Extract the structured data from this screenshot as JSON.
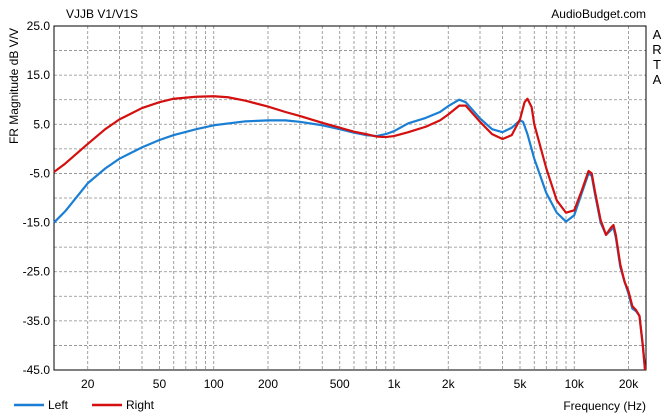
{
  "chart_data": {
    "type": "line",
    "title": "VJJB V1/V1S",
    "source": "AudioBudget.com",
    "side_label": [
      "A",
      "R",
      "T",
      "A"
    ],
    "xlabel": "Frequency (Hz)",
    "ylabel": "FR Magnitude dB V/V",
    "x_scale": "log",
    "xlim": [
      13,
      25000
    ],
    "ylim": [
      -45,
      25
    ],
    "x_ticks": [
      {
        "value": 20,
        "label": "20"
      },
      {
        "value": 50,
        "label": "50"
      },
      {
        "value": 100,
        "label": "100"
      },
      {
        "value": 200,
        "label": "200"
      },
      {
        "value": 500,
        "label": "500"
      },
      {
        "value": 1000,
        "label": "1k"
      },
      {
        "value": 2000,
        "label": "2k"
      },
      {
        "value": 5000,
        "label": "5k"
      },
      {
        "value": 10000,
        "label": "10k"
      },
      {
        "value": 20000,
        "label": "20k"
      }
    ],
    "y_ticks": [
      {
        "value": 25,
        "label": "25.0"
      },
      {
        "value": 15,
        "label": "15.0"
      },
      {
        "value": 5,
        "label": "5.0"
      },
      {
        "value": -5,
        "label": "-5.0"
      },
      {
        "value": -15,
        "label": "-15.0"
      },
      {
        "value": -25,
        "label": "-25.0"
      },
      {
        "value": -35,
        "label": "-35.0"
      },
      {
        "value": -45,
        "label": "-45.0"
      }
    ],
    "grid": true,
    "legend_position": "bottom-left",
    "series": [
      {
        "name": "Left",
        "color": "#1a7fd4",
        "points": [
          [
            13,
            -15.0
          ],
          [
            15,
            -12.7
          ],
          [
            20,
            -7.0
          ],
          [
            25,
            -4.0
          ],
          [
            30,
            -2.0
          ],
          [
            40,
            0.3
          ],
          [
            50,
            1.8
          ],
          [
            60,
            2.8
          ],
          [
            80,
            4.0
          ],
          [
            100,
            4.8
          ],
          [
            150,
            5.6
          ],
          [
            200,
            5.8
          ],
          [
            250,
            5.8
          ],
          [
            300,
            5.5
          ],
          [
            400,
            4.8
          ],
          [
            500,
            4.0
          ],
          [
            600,
            3.3
          ],
          [
            700,
            2.8
          ],
          [
            800,
            2.6
          ],
          [
            900,
            3.0
          ],
          [
            1000,
            3.6
          ],
          [
            1200,
            5.2
          ],
          [
            1500,
            6.3
          ],
          [
            1800,
            7.5
          ],
          [
            2000,
            8.7
          ],
          [
            2300,
            10.0
          ],
          [
            2500,
            9.5
          ],
          [
            3000,
            6.2
          ],
          [
            3500,
            4.0
          ],
          [
            4000,
            3.4
          ],
          [
            4500,
            4.3
          ],
          [
            5000,
            5.8
          ],
          [
            5200,
            5.5
          ],
          [
            5500,
            3.0
          ],
          [
            6000,
            -2.0
          ],
          [
            7000,
            -9.0
          ],
          [
            8000,
            -13.0
          ],
          [
            9000,
            -14.8
          ],
          [
            10000,
            -13.5
          ],
          [
            11000,
            -9.0
          ],
          [
            12000,
            -5.0
          ],
          [
            12500,
            -5.5
          ],
          [
            13000,
            -9.0
          ],
          [
            14000,
            -15.0
          ],
          [
            15000,
            -17.5
          ],
          [
            16000,
            -16.5
          ],
          [
            16500,
            -16.0
          ],
          [
            17000,
            -18.0
          ],
          [
            18000,
            -24.0
          ],
          [
            19000,
            -27.0
          ],
          [
            20000,
            -29.5
          ],
          [
            21000,
            -32.5
          ],
          [
            22000,
            -33.0
          ],
          [
            23000,
            -34.0
          ],
          [
            24000,
            -40.0
          ],
          [
            24700,
            -45.0
          ]
        ]
      },
      {
        "name": "Right",
        "color": "#d40f0f",
        "points": [
          [
            13,
            -4.7
          ],
          [
            15,
            -3.0
          ],
          [
            20,
            1.0
          ],
          [
            25,
            4.0
          ],
          [
            30,
            6.0
          ],
          [
            40,
            8.3
          ],
          [
            50,
            9.5
          ],
          [
            60,
            10.2
          ],
          [
            80,
            10.6
          ],
          [
            100,
            10.7
          ],
          [
            120,
            10.5
          ],
          [
            150,
            9.8
          ],
          [
            200,
            8.6
          ],
          [
            250,
            7.5
          ],
          [
            300,
            6.7
          ],
          [
            400,
            5.3
          ],
          [
            500,
            4.3
          ],
          [
            600,
            3.5
          ],
          [
            700,
            3.0
          ],
          [
            800,
            2.5
          ],
          [
            900,
            2.4
          ],
          [
            1000,
            2.6
          ],
          [
            1200,
            3.4
          ],
          [
            1500,
            4.5
          ],
          [
            1800,
            5.8
          ],
          [
            2000,
            7.0
          ],
          [
            2300,
            8.8
          ],
          [
            2500,
            8.8
          ],
          [
            3000,
            5.5
          ],
          [
            3500,
            3.0
          ],
          [
            4000,
            2.0
          ],
          [
            4500,
            2.8
          ],
          [
            5000,
            6.0
          ],
          [
            5300,
            9.5
          ],
          [
            5500,
            10.2
          ],
          [
            5800,
            8.5
          ],
          [
            6000,
            5.0
          ],
          [
            7000,
            -4.0
          ],
          [
            8000,
            -10.5
          ],
          [
            9000,
            -13.0
          ],
          [
            10000,
            -12.5
          ],
          [
            11000,
            -8.5
          ],
          [
            12000,
            -4.5
          ],
          [
            12500,
            -5.0
          ],
          [
            13000,
            -8.5
          ],
          [
            14000,
            -14.5
          ],
          [
            15000,
            -17.5
          ],
          [
            16000,
            -16.0
          ],
          [
            16500,
            -15.5
          ],
          [
            17000,
            -17.5
          ],
          [
            18000,
            -23.5
          ],
          [
            19000,
            -27.0
          ],
          [
            20000,
            -29.0
          ],
          [
            21000,
            -32.0
          ],
          [
            22000,
            -32.8
          ],
          [
            23000,
            -34.0
          ],
          [
            24000,
            -40.0
          ],
          [
            24700,
            -45.0
          ]
        ]
      }
    ]
  }
}
